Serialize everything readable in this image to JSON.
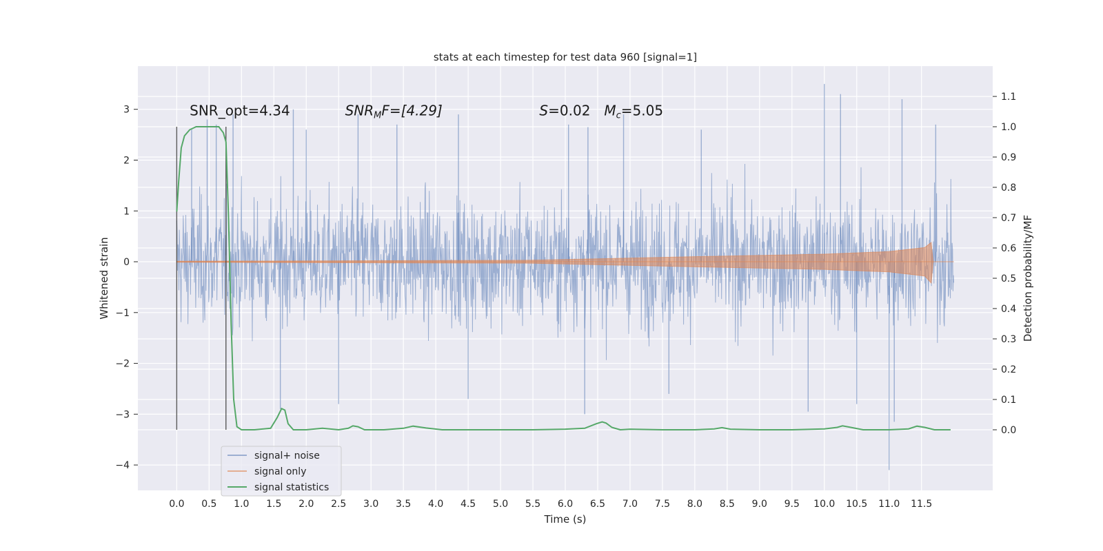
{
  "chart_data": {
    "type": "line",
    "title": "stats at each timestep for test data 960 [signal=1]",
    "xlabel": "Time (s)",
    "ylabel": "Whitened strain",
    "y2label": "Detection probability/MF",
    "xlim": [
      -0.6,
      12.6
    ],
    "ylim": [
      -4.5,
      3.85
    ],
    "y2lim": [
      -0.2,
      1.2
    ],
    "xticks": [
      0.0,
      0.5,
      1.0,
      1.5,
      2.0,
      2.5,
      3.0,
      3.5,
      4.0,
      4.5,
      5.0,
      5.5,
      6.0,
      6.5,
      7.0,
      7.5,
      8.0,
      8.5,
      9.0,
      9.5,
      10.0,
      10.5,
      11.0,
      11.5
    ],
    "xtick_labels": [
      "0.0",
      "0.5",
      "1.0",
      "1.5",
      "2.0",
      "2.5",
      "3.0",
      "3.5",
      "4.0",
      "4.5",
      "5.0",
      "5.5",
      "6.0",
      "6.5",
      "7.0",
      "7.5",
      "8.0",
      "8.5",
      "9.0",
      "9.5",
      "10.0",
      "10.5",
      "11.0",
      "11.5"
    ],
    "yticks": [
      3,
      2,
      1,
      0,
      -1,
      -2,
      -3,
      -4
    ],
    "ytick_labels": [
      "3",
      "2",
      "1",
      "0",
      "−1",
      "−2",
      "−3",
      "−4"
    ],
    "y2ticks": [
      1.1,
      1.0,
      0.9,
      0.8,
      0.7,
      0.6,
      0.5,
      0.4,
      0.3,
      0.2,
      0.1,
      0.0
    ],
    "y2tick_labels": [
      "1.1",
      "1.0",
      "0.9",
      "0.8",
      "0.7",
      "0.6",
      "0.5",
      "0.4",
      "0.3",
      "0.2",
      "0.1",
      "0.0"
    ],
    "grid": true,
    "legend_position": "lower-left",
    "series": [
      {
        "name": "signal+ noise",
        "color": "#4c72b0",
        "axis": "left",
        "x_range": [
          0.0,
          12.0
        ],
        "typical_band": [
          -1.6,
          1.7
        ],
        "spikes": [
          {
            "x": 0.23,
            "y": 2.6
          },
          {
            "x": 0.47,
            "y": 2.8
          },
          {
            "x": 0.61,
            "y": 2.7
          },
          {
            "x": 0.87,
            "y": 2.9
          },
          {
            "x": 1.8,
            "y": 3.0
          },
          {
            "x": 2.0,
            "y": 2.6
          },
          {
            "x": 2.8,
            "y": 2.9
          },
          {
            "x": 3.4,
            "y": 2.7
          },
          {
            "x": 4.35,
            "y": 2.9
          },
          {
            "x": 6.05,
            "y": 2.7
          },
          {
            "x": 6.35,
            "y": 2.65
          },
          {
            "x": 6.9,
            "y": 2.9
          },
          {
            "x": 8.1,
            "y": 2.6
          },
          {
            "x": 10.0,
            "y": 3.5
          },
          {
            "x": 10.25,
            "y": 3.3
          },
          {
            "x": 11.2,
            "y": 3.2
          },
          {
            "x": 11.72,
            "y": 2.7
          },
          {
            "x": 1.6,
            "y": -2.9
          },
          {
            "x": 2.5,
            "y": -2.8
          },
          {
            "x": 4.5,
            "y": -2.7
          },
          {
            "x": 6.3,
            "y": -3.0
          },
          {
            "x": 9.75,
            "y": -2.95
          },
          {
            "x": 11.0,
            "y": -4.1
          },
          {
            "x": 11.08,
            "y": -3.15
          },
          {
            "x": 10.5,
            "y": -2.8
          },
          {
            "x": 7.6,
            "y": -2.6
          }
        ]
      },
      {
        "name": "signal only",
        "color": "#dd8452",
        "axis": "left",
        "x_range": [
          0.0,
          12.0
        ],
        "envelope": [
          [
            0.0,
            0.01
          ],
          [
            5.5,
            0.03
          ],
          [
            8.0,
            0.1
          ],
          [
            10.0,
            0.15
          ],
          [
            11.0,
            0.2
          ],
          [
            11.55,
            0.28
          ],
          [
            11.65,
            0.38
          ],
          [
            11.68,
            0.0
          ]
        ]
      },
      {
        "name": "signal statistics",
        "color": "#55a868",
        "axis": "right",
        "x": [
          0.0,
          0.03,
          0.07,
          0.12,
          0.2,
          0.3,
          0.5,
          0.65,
          0.72,
          0.76,
          0.8,
          0.84,
          0.88,
          0.93,
          1.0,
          1.2,
          1.45,
          1.55,
          1.62,
          1.67,
          1.72,
          1.8,
          2.0,
          2.25,
          2.5,
          2.65,
          2.72,
          2.8,
          2.9,
          3.2,
          3.5,
          3.65,
          3.85,
          4.1,
          4.5,
          5.0,
          5.5,
          6.0,
          6.3,
          6.48,
          6.57,
          6.63,
          6.72,
          6.85,
          7.0,
          7.5,
          8.0,
          8.3,
          8.42,
          8.55,
          9.0,
          9.5,
          10.0,
          10.2,
          10.28,
          10.38,
          10.6,
          11.0,
          11.3,
          11.43,
          11.55,
          11.7,
          11.95
        ],
        "y": [
          0.72,
          0.82,
          0.93,
          0.97,
          0.99,
          1.0,
          1.0,
          1.0,
          0.98,
          0.95,
          0.7,
          0.35,
          0.1,
          0.01,
          0.0,
          0.0,
          0.005,
          0.04,
          0.07,
          0.065,
          0.02,
          0.0,
          0.0,
          0.005,
          0.0,
          0.005,
          0.013,
          0.01,
          0.0,
          0.0,
          0.005,
          0.012,
          0.006,
          0.0,
          0.0,
          0.0,
          0.0,
          0.002,
          0.005,
          0.02,
          0.026,
          0.022,
          0.008,
          0.0,
          0.002,
          0.0,
          0.0,
          0.003,
          0.007,
          0.002,
          0.0,
          0.0,
          0.003,
          0.008,
          0.013,
          0.009,
          0.0,
          0.0,
          0.003,
          0.012,
          0.008,
          0.0,
          0.0
        ]
      }
    ],
    "vlines": [
      0.0,
      0.76
    ],
    "annotations": [
      {
        "x": 0.2,
        "y": 2.88,
        "text": "SNR_opt=4.34"
      },
      {
        "x": 2.6,
        "y": 2.88,
        "text": "SNR",
        "sub": "M",
        "rest": "F=[4.29]",
        "italic": true
      },
      {
        "x": 5.6,
        "y": 2.88,
        "text": "S",
        "rest": "=0.02",
        "italic": true
      },
      {
        "x": 6.6,
        "y": 2.88,
        "text": "M",
        "sub": "c",
        "rest": "=5.05",
        "italic": true
      }
    ]
  }
}
